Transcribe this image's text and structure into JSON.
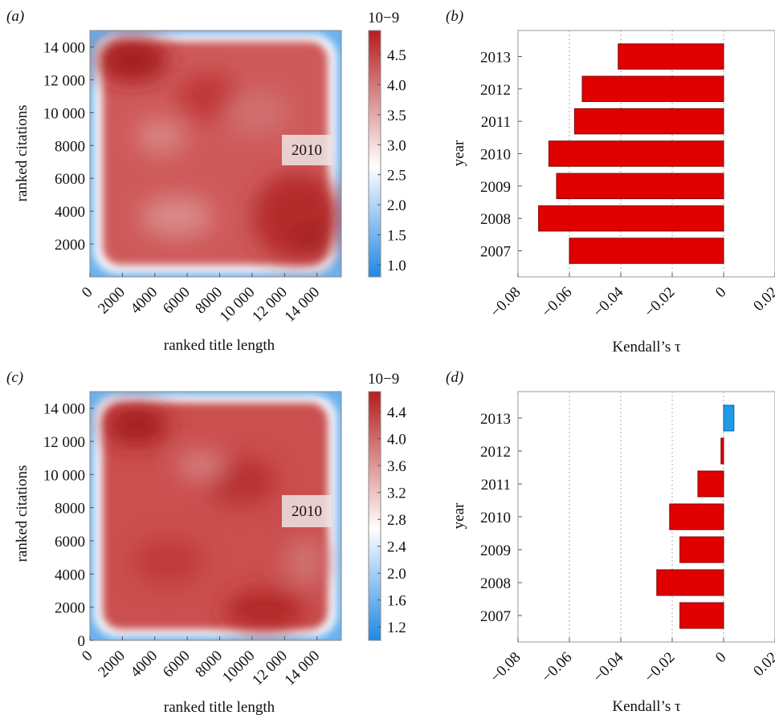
{
  "chart_data": [
    {
      "panel_label": "(a)",
      "type": "heatmap",
      "xlabel": "ranked title length",
      "ylabel": "ranked citations",
      "xticks": [
        0,
        2000,
        4000,
        6000,
        8000,
        10000,
        12000,
        14000
      ],
      "xtick_labels": [
        "0",
        "2000",
        "4000",
        "6000",
        "8000",
        "10 000",
        "12 000",
        "14 000"
      ],
      "yticks": [
        2000,
        4000,
        6000,
        8000,
        10000,
        12000,
        14000
      ],
      "ytick_labels": [
        "2000",
        "4000",
        "6000",
        "8000",
        "10 000",
        "12 000",
        "14 000"
      ],
      "xlim": [
        0,
        15500
      ],
      "ylim": [
        0,
        15000
      ],
      "annotation": "2010",
      "colorbar": {
        "exponent_label": "10−9",
        "range": [
          0.8,
          4.9
        ],
        "ticks": [
          1.0,
          1.5,
          2.0,
          2.5,
          3.0,
          3.5,
          4.0,
          4.5
        ],
        "tick_labels": [
          "1.0",
          "1.5",
          "2.0",
          "2.5",
          "3.0",
          "3.5",
          "4.0",
          "4.5"
        ],
        "low_color": "#1e88e5",
        "mid_color": "#ffffff",
        "high_color": "#b71c1c"
      }
    },
    {
      "panel_label": "(b)",
      "type": "bar",
      "orientation": "horizontal",
      "categories": [
        "2007",
        "2008",
        "2009",
        "2010",
        "2011",
        "2012",
        "2013"
      ],
      "values": [
        -0.06,
        -0.072,
        -0.065,
        -0.068,
        -0.058,
        -0.055,
        -0.041
      ],
      "xlabel": "Kendall’s τ",
      "ylabel": "year",
      "xlim": [
        -0.08,
        0.02
      ],
      "xticks": [
        -0.08,
        -0.06,
        -0.04,
        -0.02,
        0,
        0.02
      ],
      "xtick_labels": [
        "−0.08",
        "−0.06",
        "−0.04",
        "−0.02",
        "0",
        "0.02"
      ],
      "grid": "vertical dotted",
      "negative_color": "#e00000",
      "positive_color": "#1e9be8"
    },
    {
      "panel_label": "(c)",
      "type": "heatmap",
      "xlabel": "ranked title length",
      "ylabel": "ranked citations",
      "xticks": [
        0,
        2000,
        4000,
        6000,
        8000,
        10000,
        12000,
        14000
      ],
      "xtick_labels": [
        "0",
        "2000",
        "4000",
        "6000",
        "8000",
        "10000",
        "12 000",
        "14 000"
      ],
      "yticks": [
        0,
        2000,
        4000,
        6000,
        8000,
        10000,
        12000,
        14000
      ],
      "ytick_labels": [
        "0",
        "2000",
        "4000",
        "6000",
        "8000",
        "10 000",
        "12 000",
        "14 000"
      ],
      "xlim": [
        0,
        15500
      ],
      "ylim": [
        0,
        15000
      ],
      "annotation": "2010",
      "colorbar": {
        "exponent_label": "10−9",
        "range": [
          1.0,
          4.7
        ],
        "ticks": [
          1.2,
          1.6,
          2.0,
          2.4,
          2.8,
          3.2,
          3.6,
          4.0,
          4.4
        ],
        "tick_labels": [
          "1.2",
          "1.6",
          "2.0",
          "2.4",
          "2.8",
          "3.2",
          "3.6",
          "4.0",
          "4.4"
        ],
        "low_color": "#1e88e5",
        "mid_color": "#ffffff",
        "high_color": "#b71c1c"
      }
    },
    {
      "panel_label": "(d)",
      "type": "bar",
      "orientation": "horizontal",
      "categories": [
        "2007",
        "2008",
        "2009",
        "2010",
        "2011",
        "2012",
        "2013"
      ],
      "values": [
        -0.017,
        -0.026,
        -0.017,
        -0.021,
        -0.01,
        -0.001,
        0.004
      ],
      "xlabel": "Kendall’s τ",
      "ylabel": "year",
      "xlim": [
        -0.08,
        0.02
      ],
      "xticks": [
        -0.08,
        -0.06,
        -0.04,
        -0.02,
        0,
        0.02
      ],
      "xtick_labels": [
        "−0.08",
        "−0.06",
        "−0.04",
        "−0.02",
        "0",
        "0.02"
      ],
      "grid": "vertical dotted",
      "negative_color": "#e00000",
      "positive_color": "#1e9be8"
    }
  ]
}
